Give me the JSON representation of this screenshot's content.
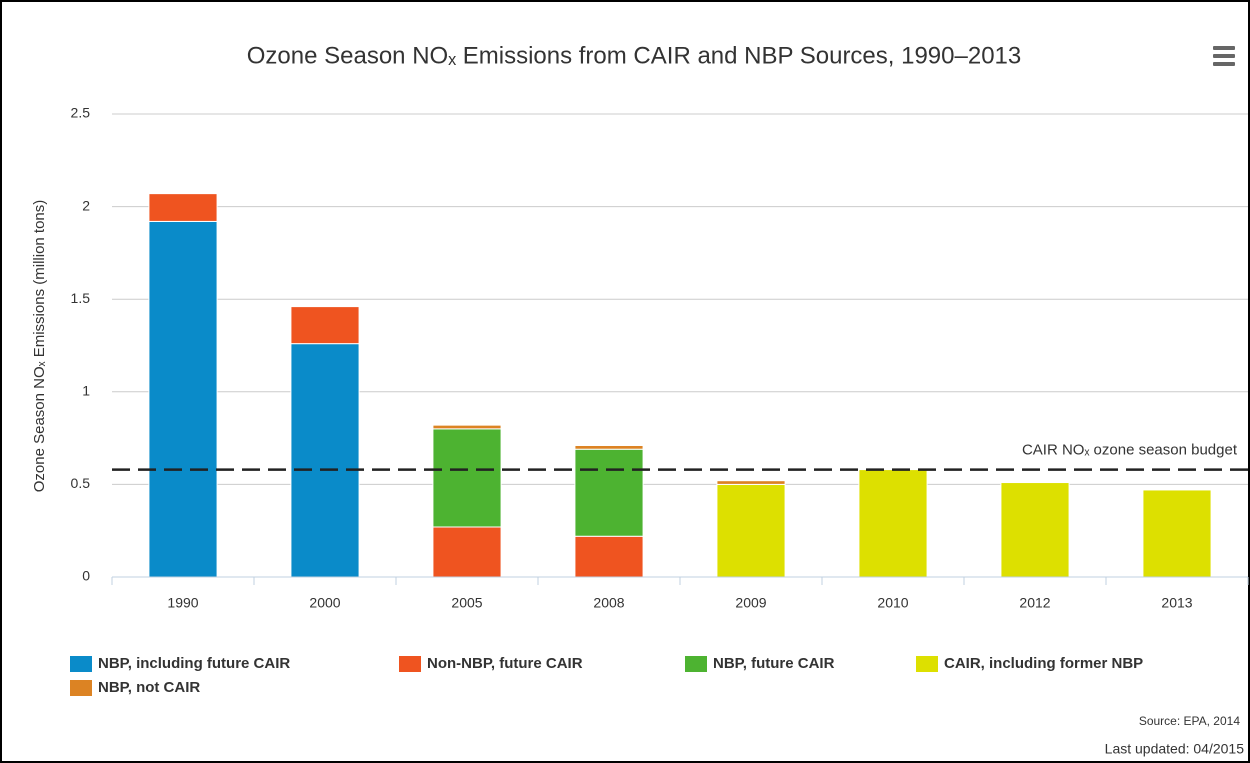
{
  "chart_data": {
    "type": "stacked_bar",
    "title": "Ozone Season NOₓ Emissions from CAIR and NBP Sources, 1990–2013",
    "y_label": "Ozone Season NOₓ Emissions (million tons)",
    "categories": [
      "1990",
      "2000",
      "2005",
      "2008",
      "2009",
      "2010",
      "2012",
      "2013"
    ],
    "series": [
      {
        "name": "NBP, including future CAIR",
        "color": "#0a8bc9",
        "values": [
          1.92,
          1.26,
          null,
          null,
          null,
          null,
          null,
          null
        ]
      },
      {
        "name": "Non-NBP, future CAIR",
        "color": "#ef5420",
        "values": [
          0.15,
          0.2,
          0.27,
          0.22,
          null,
          null,
          null,
          null
        ]
      },
      {
        "name": "NBP, future CAIR",
        "color": "#4db331",
        "values": [
          null,
          null,
          0.53,
          0.47,
          null,
          null,
          null,
          null
        ]
      },
      {
        "name": "CAIR, including former NBP",
        "color": "#dde000",
        "values": [
          null,
          null,
          null,
          null,
          0.5,
          0.58,
          0.51,
          0.47
        ]
      },
      {
        "name": "NBP, not CAIR",
        "color": "#dc8323",
        "values": [
          null,
          null,
          0.02,
          0.02,
          0.02,
          null,
          null,
          null
        ]
      }
    ],
    "ylim": [
      0,
      2.5
    ],
    "yticks": [
      0,
      0.5,
      1,
      1.5,
      2,
      2.5
    ],
    "grid": true,
    "budget_line": {
      "value": 0.58,
      "label": "CAIR NOₓ ozone season budget"
    },
    "source": "Source: EPA, 2014",
    "updated": "Last updated: 04/2015"
  }
}
